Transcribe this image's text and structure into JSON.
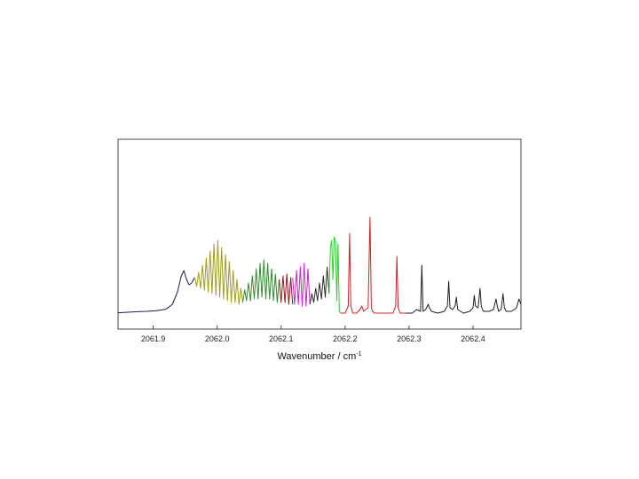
{
  "chart_data": {
    "type": "line",
    "title": "",
    "xlabel": "Wavenumber / cm",
    "xlabel_superscript": "-1",
    "ylabel": "",
    "xlim": [
      2061.845,
      2062.475
    ],
    "ylim": [
      0,
      1.0
    ],
    "x_ticks": [
      2061.9,
      2062.0,
      2062.1,
      2062.2,
      2062.3,
      2062.4
    ],
    "x_tick_labels": [
      "2061.9",
      "2062.0",
      "2062.1",
      "2062.2",
      "2062.3",
      "2062.4"
    ],
    "y_ticks_shown": false,
    "grid": false,
    "legend": "none",
    "series": [
      {
        "color": "#1a1a5e",
        "x": [
          2061.845,
          2061.86,
          2061.875,
          2061.89,
          2061.905,
          2061.92,
          2061.93,
          2061.938,
          2061.944,
          2061.948,
          2061.952,
          2061.956,
          2061.96,
          2061.965
        ],
        "y": [
          0.012,
          0.015,
          0.018,
          0.02,
          0.024,
          0.032,
          0.06,
          0.13,
          0.22,
          0.25,
          0.2,
          0.17,
          0.18,
          0.21
        ]
      },
      {
        "color": "#a39a1e",
        "x": [
          2061.965,
          2061.968,
          2061.971,
          2061.974,
          2061.977,
          2061.98,
          2061.983,
          2061.986,
          2061.989,
          2061.992,
          2061.995,
          2061.998,
          2062.001,
          2062.004,
          2062.007,
          2062.01,
          2062.013,
          2062.016,
          2062.019,
          2062.022,
          2062.025,
          2062.028,
          2062.031,
          2062.034,
          2062.037,
          2062.04
        ],
        "y": [
          0.21,
          0.16,
          0.24,
          0.15,
          0.28,
          0.14,
          0.32,
          0.13,
          0.36,
          0.12,
          0.4,
          0.11,
          0.42,
          0.1,
          0.38,
          0.09,
          0.34,
          0.08,
          0.3,
          0.07,
          0.25,
          0.07,
          0.2,
          0.06,
          0.15,
          0.07
        ]
      },
      {
        "color": "#2e8b2e",
        "x": [
          2062.04,
          2062.043,
          2062.046,
          2062.049,
          2062.052,
          2062.055,
          2062.058,
          2062.061,
          2062.064,
          2062.067,
          2062.07,
          2062.073,
          2062.076,
          2062.079,
          2062.082,
          2062.085,
          2062.088,
          2062.091,
          2062.094,
          2062.097
        ],
        "y": [
          0.07,
          0.14,
          0.08,
          0.18,
          0.08,
          0.22,
          0.09,
          0.26,
          0.09,
          0.29,
          0.1,
          0.31,
          0.09,
          0.29,
          0.09,
          0.26,
          0.08,
          0.23,
          0.07,
          0.2
        ]
      },
      {
        "color": "#8b1a1a",
        "x": [
          2062.097,
          2062.1,
          2062.103,
          2062.106,
          2062.109,
          2062.112,
          2062.115,
          2062.118
        ],
        "y": [
          0.2,
          0.07,
          0.22,
          0.07,
          0.23,
          0.06,
          0.21,
          0.06
        ]
      },
      {
        "color": "#cc22cc",
        "x": [
          2062.118,
          2062.121,
          2062.124,
          2062.127,
          2062.13,
          2062.133,
          2062.136,
          2062.139,
          2062.142,
          2062.145
        ],
        "y": [
          0.21,
          0.06,
          0.25,
          0.06,
          0.27,
          0.05,
          0.29,
          0.05,
          0.26,
          0.06
        ]
      },
      {
        "color": "#2a2a2a",
        "x": [
          2062.145,
          2062.148,
          2062.151,
          2062.154,
          2062.157,
          2062.16,
          2062.163,
          2062.166,
          2062.169,
          2062.172,
          2062.175
        ],
        "y": [
          0.06,
          0.12,
          0.07,
          0.15,
          0.08,
          0.18,
          0.09,
          0.22,
          0.1,
          0.27,
          0.12
        ]
      },
      {
        "color": "#33cc33",
        "x": [
          2062.175,
          2062.177,
          2062.179,
          2062.181,
          2062.183,
          2062.185,
          2062.187,
          2062.189,
          2062.191,
          2062.193
        ],
        "y": [
          0.12,
          0.38,
          0.42,
          0.2,
          0.44,
          0.42,
          0.08,
          0.4,
          0.02,
          0.01
        ]
      },
      {
        "color": "#cc2222",
        "x": [
          2062.193,
          2062.2,
          2062.205,
          2062.207,
          2062.209,
          2062.212,
          2062.218,
          2062.223,
          2062.226,
          2062.229,
          2062.232,
          2062.236,
          2062.239,
          2062.241,
          2062.243,
          2062.246,
          2062.255,
          2062.265,
          2062.275,
          2062.279,
          2062.281,
          2062.283,
          2062.286,
          2062.295
        ],
        "y": [
          0.01,
          0.01,
          0.05,
          0.46,
          0.05,
          0.01,
          0.01,
          0.03,
          0.05,
          0.02,
          0.03,
          0.04,
          0.55,
          0.04,
          0.02,
          0.01,
          0.01,
          0.01,
          0.01,
          0.05,
          0.33,
          0.04,
          0.01,
          0.01
        ]
      },
      {
        "color": "#1f1f1f",
        "x": [
          2062.295,
          2062.305,
          2062.312,
          2062.318,
          2062.32,
          2062.322,
          2062.326,
          2062.33,
          2062.332,
          2062.335,
          2062.345,
          2062.355,
          2062.36,
          2062.362,
          2062.364,
          2062.368,
          2062.372,
          2062.374,
          2062.376,
          2062.385,
          2062.395,
          2062.4,
          2062.402,
          2062.404,
          2062.408,
          2062.411,
          2062.413,
          2062.416,
          2062.425,
          2062.432,
          2062.436,
          2062.438,
          2062.44,
          2062.444,
          2062.447,
          2062.449,
          2062.452,
          2062.46,
          2062.468,
          2062.472,
          2062.475
        ],
        "y": [
          0.01,
          0.01,
          0.03,
          0.02,
          0.28,
          0.02,
          0.03,
          0.06,
          0.04,
          0.02,
          0.01,
          0.02,
          0.05,
          0.19,
          0.04,
          0.03,
          0.05,
          0.1,
          0.03,
          0.01,
          0.02,
          0.04,
          0.11,
          0.05,
          0.04,
          0.15,
          0.05,
          0.02,
          0.02,
          0.03,
          0.09,
          0.05,
          0.02,
          0.03,
          0.12,
          0.04,
          0.02,
          0.02,
          0.04,
          0.09,
          0.06
        ]
      }
    ]
  }
}
